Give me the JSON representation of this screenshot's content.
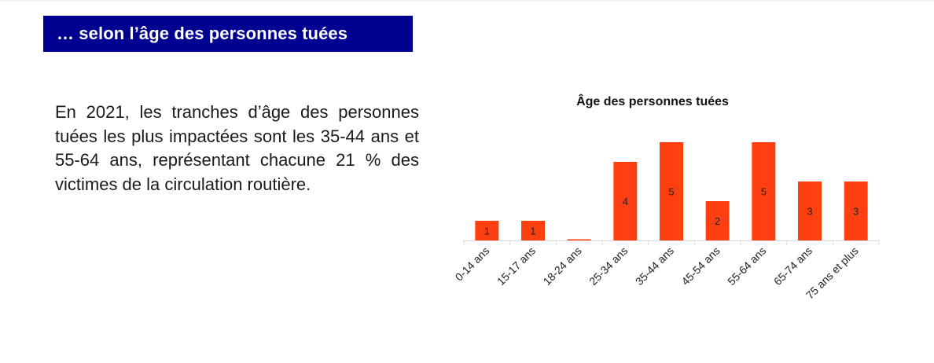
{
  "header": {
    "title": "… selon l’âge des personnes tuées"
  },
  "intro": {
    "text": "En 2021, les tranches d’âge des personnes tuées les plus impactées sont les 35-44 ans et 55-64 ans, représentant chacune 21 % des victimes de la circulation routière."
  },
  "colors": {
    "banner": "#000091",
    "bar": "#ff3f0f",
    "axis": "#d9d9d9"
  },
  "chart_data": {
    "type": "bar",
    "title": "Âge des personnes tuées",
    "categories": [
      "0-14 ans",
      "15-17 ans",
      "18-24 ans",
      "25-34 ans",
      "35-44 ans",
      "45-54 ans",
      "55-64 ans",
      "65-74 ans",
      "75 ans et plus"
    ],
    "values": [
      1,
      1,
      0,
      4,
      5,
      2,
      5,
      3,
      3
    ],
    "data_labels": [
      "1",
      "1",
      "",
      "4",
      "5",
      "2",
      "5",
      "3",
      "3"
    ],
    "xlabel": "",
    "ylabel": "",
    "ylim": [
      0,
      5
    ],
    "grid": false,
    "legend": "none"
  }
}
